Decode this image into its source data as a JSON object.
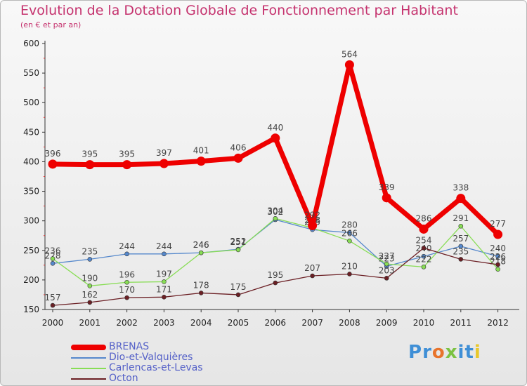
{
  "header": {
    "title": "Evolution de la Dotation Globale de Fonctionnement par Habitant",
    "subtitle": "(en € et par an)"
  },
  "logo": {
    "text": "Proxiti",
    "letters": [
      "P",
      "r",
      "o",
      "x",
      "i",
      "t",
      "i"
    ],
    "colors": [
      "#3f8fd6",
      "#3f8fd6",
      "#e8742c",
      "#7cc242",
      "#3f8fd6",
      "#3f8fd6",
      "#e8c82c"
    ]
  },
  "chart_data": {
    "type": "line",
    "title": "Evolution de la Dotation Globale de Fonctionnement par Habitant",
    "subtitle": "(en € et par an)",
    "xlabel": "",
    "ylabel": "",
    "x": [
      "2000",
      "2001",
      "2002",
      "2003",
      "2004",
      "2005",
      "2006",
      "2007",
      "2008",
      "2009",
      "2010",
      "2011",
      "2012"
    ],
    "ylim": [
      150,
      600
    ],
    "yticks": [
      150,
      200,
      250,
      300,
      350,
      400,
      450,
      500,
      550,
      600
    ],
    "grid": false,
    "legend_position": "bottom-left",
    "series": [
      {
        "name": "BRENAS",
        "color": "#ee0000",
        "values": [
          396,
          395,
          395,
          397,
          401,
          406,
          440,
          292,
          564,
          339,
          286,
          338,
          277
        ]
      },
      {
        "name": "Dio-et-Valquières",
        "color": "#5588cc",
        "values": [
          228,
          235,
          244,
          244,
          246,
          252,
          302,
          285,
          280,
          223,
          240,
          257,
          240
        ]
      },
      {
        "name": "Carlencas-et-Levas",
        "color": "#88dd55",
        "values": [
          236,
          190,
          196,
          197,
          246,
          251,
          304,
          288,
          266,
          227,
          222,
          291,
          218
        ]
      },
      {
        "name": "Octon",
        "color": "#6b1f24",
        "values": [
          157,
          162,
          170,
          171,
          178,
          175,
          195,
          207,
          210,
          203,
          254,
          235,
          226
        ]
      }
    ]
  }
}
